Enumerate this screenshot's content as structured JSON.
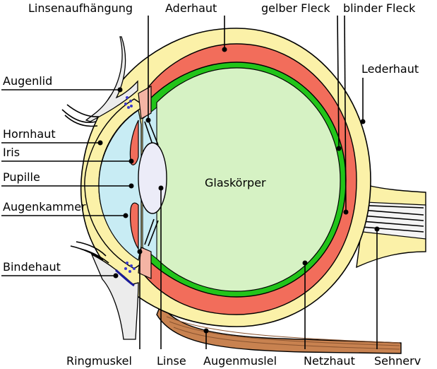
{
  "labels": {
    "top": {
      "linsenaufhaengung": "Linsenaufhängung",
      "aderhaut": "Aderhaut",
      "gelber_fleck": "gelber Fleck",
      "blinder_fleck": "blinder Fleck",
      "lederhaut": "Lederhaut"
    },
    "left": {
      "augenlid": "Augenlid",
      "hornhaut": "Hornhaut",
      "iris": "Iris",
      "pupille": "Pupille",
      "augenkammer": "Augenkammer",
      "bindehaut": "Bindehaut"
    },
    "center": {
      "glaskoerper": "Glaskörper"
    },
    "bottom": {
      "ringmuskel": "Ringmuskel",
      "linse": "Linse",
      "augenmuskel": "Augenmuslel",
      "netzhaut": "Netzhaut",
      "sehnerv": "Sehnerv"
    }
  },
  "colors": {
    "lederhaut": "#fbf1a8",
    "aderhaut": "#f26d5b",
    "netzhaut": "#22c41a",
    "glaskoerper": "#d6f2c4",
    "augenkammer": "#c8ecf4",
    "linse": "#ececf8",
    "augenmuskel": "#c88250",
    "augenlid": "#ececec",
    "ziliarkoerper": "#f4b4a4"
  }
}
